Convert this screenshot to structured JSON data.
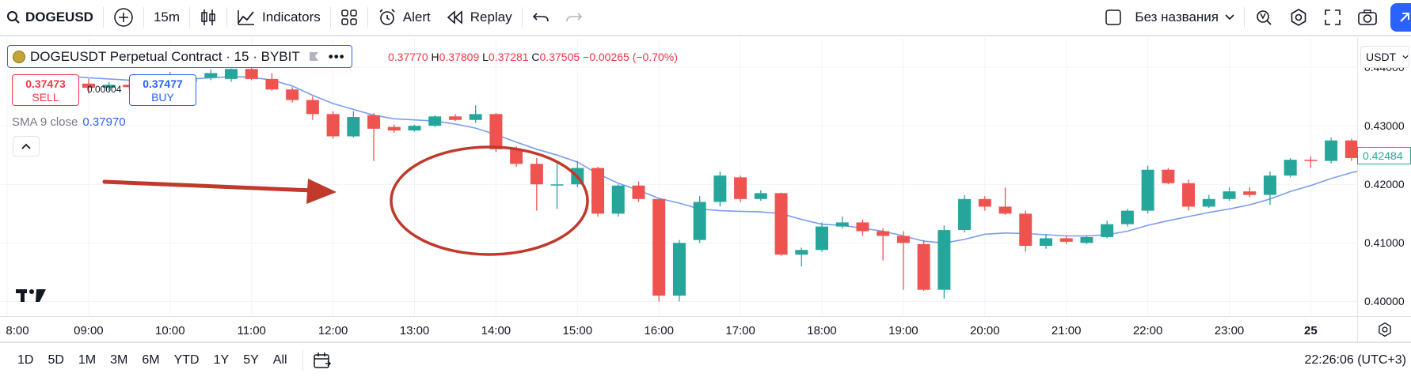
{
  "toolbar": {
    "symbol": "DOGEUSD",
    "interval": "15m",
    "indicators_label": "Indicators",
    "alert_label": "Alert",
    "replay_label": "Replay",
    "layout_name": "Без названия"
  },
  "legend": {
    "symbol_title": "DOGEUSDT Perpetual Contract · 15 · BYBIT",
    "ohlc": {
      "o": "0.37770",
      "h_key": "H",
      "h": "0.37809",
      "l_key": "L",
      "l": "0.37281",
      "c_key": "C",
      "c": "0.37505",
      "change": "−0.00265 (−0.70%)"
    },
    "sell_price": "0.37473",
    "sell_label": "SELL",
    "buy_price": "0.37477",
    "buy_label": "BUY",
    "spread": "0.00004",
    "sma_label": "SMA 9 close",
    "sma_value": "0.37970"
  },
  "price_scale": {
    "currency": "USDT",
    "labels": [
      "0.44000",
      "0.43000",
      "0.42000",
      "0.41000",
      "0.40000"
    ],
    "last_price": "0.42484"
  },
  "time_scale": {
    "labels": [
      "8:00",
      "09:00",
      "10:00",
      "11:00",
      "12:00",
      "13:00",
      "14:00",
      "15:00",
      "16:00",
      "17:00",
      "18:00",
      "19:00",
      "20:00",
      "21:00",
      "22:00",
      "23:00",
      "25"
    ]
  },
  "ranges": [
    "1D",
    "5D",
    "1M",
    "3M",
    "6M",
    "YTD",
    "1Y",
    "5Y",
    "All"
  ],
  "clock": "22:26:06 (UTC+3)",
  "colors": {
    "up": "#26a69a",
    "down": "#ef5350",
    "sma": "#7b9cf2",
    "annotation": "#c0392b",
    "accent": "#2962ff"
  },
  "chart_data": {
    "type": "candlestick",
    "y_range": [
      0.3975,
      0.445
    ],
    "x_start": "08:00",
    "bar_interval_minutes": 15,
    "candles": [
      {
        "t": "08:45",
        "o": 0.4375,
        "h": 0.4382,
        "l": 0.437,
        "c": 0.4372
      },
      {
        "t": "09:00",
        "o": 0.4372,
        "h": 0.438,
        "l": 0.4355,
        "c": 0.4365
      },
      {
        "t": "09:15",
        "o": 0.4365,
        "h": 0.4375,
        "l": 0.436,
        "c": 0.437
      },
      {
        "t": "09:30",
        "o": 0.437,
        "h": 0.4378,
        "l": 0.4362,
        "c": 0.4366
      },
      {
        "t": "09:45",
        "o": 0.4366,
        "h": 0.4385,
        "l": 0.436,
        "c": 0.438
      },
      {
        "t": "10:00",
        "o": 0.438,
        "h": 0.4392,
        "l": 0.4372,
        "c": 0.4375
      },
      {
        "t": "10:15",
        "o": 0.4375,
        "h": 0.4388,
        "l": 0.437,
        "c": 0.4382
      },
      {
        "t": "10:30",
        "o": 0.4382,
        "h": 0.4396,
        "l": 0.4378,
        "c": 0.439
      },
      {
        "t": "10:45",
        "o": 0.438,
        "h": 0.4398,
        "l": 0.4375,
        "c": 0.4397
      },
      {
        "t": "11:00",
        "o": 0.4397,
        "h": 0.4402,
        "l": 0.4378,
        "c": 0.438
      },
      {
        "t": "11:15",
        "o": 0.438,
        "h": 0.439,
        "l": 0.436,
        "c": 0.4362
      },
      {
        "t": "11:30",
        "o": 0.4362,
        "h": 0.4366,
        "l": 0.434,
        "c": 0.4344
      },
      {
        "t": "11:45",
        "o": 0.4344,
        "h": 0.435,
        "l": 0.431,
        "c": 0.432
      },
      {
        "t": "12:00",
        "o": 0.432,
        "h": 0.4325,
        "l": 0.4278,
        "c": 0.4282
      },
      {
        "t": "12:15",
        "o": 0.4282,
        "h": 0.4325,
        "l": 0.428,
        "c": 0.4315
      },
      {
        "t": "12:30",
        "o": 0.4318,
        "h": 0.4322,
        "l": 0.424,
        "c": 0.4295
      },
      {
        "t": "12:45",
        "o": 0.4298,
        "h": 0.4302,
        "l": 0.4288,
        "c": 0.4292
      },
      {
        "t": "13:00",
        "o": 0.4292,
        "h": 0.4302,
        "l": 0.429,
        "c": 0.43
      },
      {
        "t": "13:15",
        "o": 0.43,
        "h": 0.4318,
        "l": 0.4298,
        "c": 0.4316
      },
      {
        "t": "13:30",
        "o": 0.4316,
        "h": 0.432,
        "l": 0.4308,
        "c": 0.431
      },
      {
        "t": "13:45",
        "o": 0.431,
        "h": 0.4335,
        "l": 0.4305,
        "c": 0.432
      },
      {
        "t": "14:00",
        "o": 0.432,
        "h": 0.4322,
        "l": 0.4255,
        "c": 0.426
      },
      {
        "t": "14:15",
        "o": 0.426,
        "h": 0.4265,
        "l": 0.423,
        "c": 0.4235
      },
      {
        "t": "14:30",
        "o": 0.4235,
        "h": 0.4245,
        "l": 0.4155,
        "c": 0.42
      },
      {
        "t": "14:45",
        "o": 0.42,
        "h": 0.4238,
        "l": 0.4158,
        "c": 0.42
      },
      {
        "t": "15:00",
        "o": 0.42,
        "h": 0.424,
        "l": 0.4195,
        "c": 0.4228
      },
      {
        "t": "15:15",
        "o": 0.4228,
        "h": 0.423,
        "l": 0.4145,
        "c": 0.415
      },
      {
        "t": "15:30",
        "o": 0.415,
        "h": 0.42,
        "l": 0.4145,
        "c": 0.4198
      },
      {
        "t": "15:45",
        "o": 0.4198,
        "h": 0.4205,
        "l": 0.417,
        "c": 0.4175
      },
      {
        "t": "16:00",
        "o": 0.4175,
        "h": 0.4175,
        "l": 0.4,
        "c": 0.401
      },
      {
        "t": "16:15",
        "o": 0.401,
        "h": 0.4105,
        "l": 0.4,
        "c": 0.41
      },
      {
        "t": "16:30",
        "o": 0.4105,
        "h": 0.418,
        "l": 0.41,
        "c": 0.417
      },
      {
        "t": "16:45",
        "o": 0.417,
        "h": 0.4222,
        "l": 0.4162,
        "c": 0.4215
      },
      {
        "t": "17:00",
        "o": 0.4212,
        "h": 0.4215,
        "l": 0.417,
        "c": 0.4175
      },
      {
        "t": "17:15",
        "o": 0.4175,
        "h": 0.419,
        "l": 0.4172,
        "c": 0.4185
      },
      {
        "t": "17:30",
        "o": 0.4185,
        "h": 0.4186,
        "l": 0.4078,
        "c": 0.408
      },
      {
        "t": "17:45",
        "o": 0.408,
        "h": 0.4092,
        "l": 0.406,
        "c": 0.4088
      },
      {
        "t": "18:00",
        "o": 0.4088,
        "h": 0.4135,
        "l": 0.4085,
        "c": 0.4128
      },
      {
        "t": "18:15",
        "o": 0.4128,
        "h": 0.4145,
        "l": 0.4125,
        "c": 0.4135
      },
      {
        "t": "18:30",
        "o": 0.4135,
        "h": 0.414,
        "l": 0.4112,
        "c": 0.412
      },
      {
        "t": "18:45",
        "o": 0.412,
        "h": 0.4125,
        "l": 0.407,
        "c": 0.4112
      },
      {
        "t": "19:00",
        "o": 0.4112,
        "h": 0.412,
        "l": 0.402,
        "c": 0.41
      },
      {
        "t": "19:15",
        "o": 0.4098,
        "h": 0.4105,
        "l": 0.4018,
        "c": 0.402
      },
      {
        "t": "19:30",
        "o": 0.402,
        "h": 0.413,
        "l": 0.4005,
        "c": 0.4122
      },
      {
        "t": "19:45",
        "o": 0.4122,
        "h": 0.4182,
        "l": 0.4118,
        "c": 0.4175
      },
      {
        "t": "20:00",
        "o": 0.4175,
        "h": 0.418,
        "l": 0.4155,
        "c": 0.4162
      },
      {
        "t": "20:15",
        "o": 0.4162,
        "h": 0.4195,
        "l": 0.4148,
        "c": 0.415
      },
      {
        "t": "20:30",
        "o": 0.415,
        "h": 0.4155,
        "l": 0.4085,
        "c": 0.4095
      },
      {
        "t": "20:45",
        "o": 0.4095,
        "h": 0.4115,
        "l": 0.409,
        "c": 0.4108
      },
      {
        "t": "21:00",
        "o": 0.4108,
        "h": 0.4112,
        "l": 0.4098,
        "c": 0.4102
      },
      {
        "t": "21:15",
        "o": 0.41,
        "h": 0.4112,
        "l": 0.4098,
        "c": 0.411
      },
      {
        "t": "21:30",
        "o": 0.411,
        "h": 0.4138,
        "l": 0.4108,
        "c": 0.4132
      },
      {
        "t": "21:45",
        "o": 0.4132,
        "h": 0.4158,
        "l": 0.4128,
        "c": 0.4155
      },
      {
        "t": "22:00",
        "o": 0.4155,
        "h": 0.4232,
        "l": 0.415,
        "c": 0.4225
      },
      {
        "t": "22:15",
        "o": 0.4225,
        "h": 0.4228,
        "l": 0.42,
        "c": 0.4202
      },
      {
        "t": "22:30",
        "o": 0.4202,
        "h": 0.4208,
        "l": 0.4155,
        "c": 0.4162
      },
      {
        "t": "22:45",
        "o": 0.4162,
        "h": 0.4182,
        "l": 0.416,
        "c": 0.4175
      },
      {
        "t": "23:00",
        "o": 0.4175,
        "h": 0.4195,
        "l": 0.4172,
        "c": 0.4188
      },
      {
        "t": "23:15",
        "o": 0.4188,
        "h": 0.4195,
        "l": 0.4178,
        "c": 0.4182
      },
      {
        "t": "23:30",
        "o": 0.4182,
        "h": 0.4222,
        "l": 0.4165,
        "c": 0.4215
      },
      {
        "t": "23:45",
        "o": 0.4215,
        "h": 0.4245,
        "l": 0.4212,
        "c": 0.4242
      },
      {
        "t": "00:00",
        "o": 0.4242,
        "h": 0.4248,
        "l": 0.4228,
        "c": 0.424
      },
      {
        "t": "00:15",
        "o": 0.424,
        "h": 0.428,
        "l": 0.4236,
        "c": 0.4275
      },
      {
        "t": "00:30",
        "o": 0.4275,
        "h": 0.4278,
        "l": 0.424,
        "c": 0.4245
      },
      {
        "t": "00:45",
        "o": 0.4245,
        "h": 0.428,
        "l": 0.4243,
        "c": 0.4247
      },
      {
        "t": "01:00",
        "o": 0.4247,
        "h": 0.426,
        "l": 0.4225,
        "c": 0.425
      }
    ],
    "sma_9": [
      0.4385,
      0.4382,
      0.438,
      0.4378,
      0.4377,
      0.4378,
      0.438,
      0.4382,
      0.4384,
      0.4383,
      0.4378,
      0.4368,
      0.4352,
      0.4338,
      0.4328,
      0.4318,
      0.4312,
      0.431,
      0.4308,
      0.4303,
      0.4296,
      0.4285,
      0.4272,
      0.426,
      0.425,
      0.4238,
      0.4218,
      0.4202,
      0.419,
      0.4176,
      0.4168,
      0.4158,
      0.4155,
      0.4154,
      0.4153,
      0.415,
      0.414,
      0.4132,
      0.413,
      0.4125,
      0.412,
      0.4112,
      0.4103,
      0.41,
      0.4106,
      0.4115,
      0.4117,
      0.4116,
      0.4114,
      0.4112,
      0.4112,
      0.4114,
      0.412,
      0.413,
      0.4138,
      0.4145,
      0.4152,
      0.4158,
      0.4165,
      0.4175,
      0.4188,
      0.4198,
      0.421,
      0.422,
      0.4228,
      0.4237
    ]
  }
}
